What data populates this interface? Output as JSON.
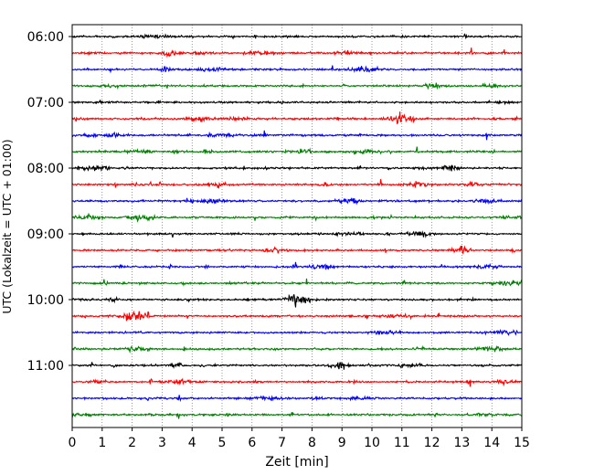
{
  "chart_data": {
    "type": "line",
    "subtype": "helicorder",
    "xlabel": "Zeit  [min]",
    "ylabel": "UTC (Lokalzeit = UTC + 01:00)",
    "xlim": [
      0,
      15
    ],
    "x_ticks": [
      "0",
      "1",
      "2",
      "3",
      "4",
      "5",
      "6",
      "7",
      "8",
      "9",
      "10",
      "11",
      "12",
      "13",
      "14",
      "15"
    ],
    "y_tick_labels": [
      "06:00",
      "07:00",
      "08:00",
      "09:00",
      "10:00",
      "11:00"
    ],
    "trace_interval_minutes": 15,
    "trace_start_times": [
      "06:00",
      "06:15",
      "06:30",
      "06:45",
      "07:00",
      "07:15",
      "07:30",
      "07:45",
      "08:00",
      "08:15",
      "08:30",
      "08:45",
      "09:00",
      "09:15",
      "09:30",
      "09:45",
      "10:00",
      "10:15",
      "10:30",
      "10:45",
      "11:00",
      "11:15",
      "11:30",
      "11:45"
    ],
    "color_cycle": [
      "#000000",
      "#ff0000",
      "#0000ff",
      "#008000"
    ],
    "vertical_grid": "dotted",
    "notable_events": [
      {
        "trace": "07:15",
        "x_min": 11.0,
        "level": "high"
      },
      {
        "trace": "09:15",
        "x_min": 13.0,
        "level": "medium"
      },
      {
        "trace": "10:00",
        "x_min": 7.5,
        "level": "high"
      },
      {
        "trace": "10:15",
        "x_min": 2.0,
        "level": "high"
      },
      {
        "trace": "11:00",
        "x_min": 8.9,
        "level": "medium"
      },
      {
        "trace": "08:15",
        "x_min": 11.6,
        "level": "medium"
      },
      {
        "trace": "06:15",
        "x_min": 3.3,
        "level": "medium"
      }
    ]
  }
}
